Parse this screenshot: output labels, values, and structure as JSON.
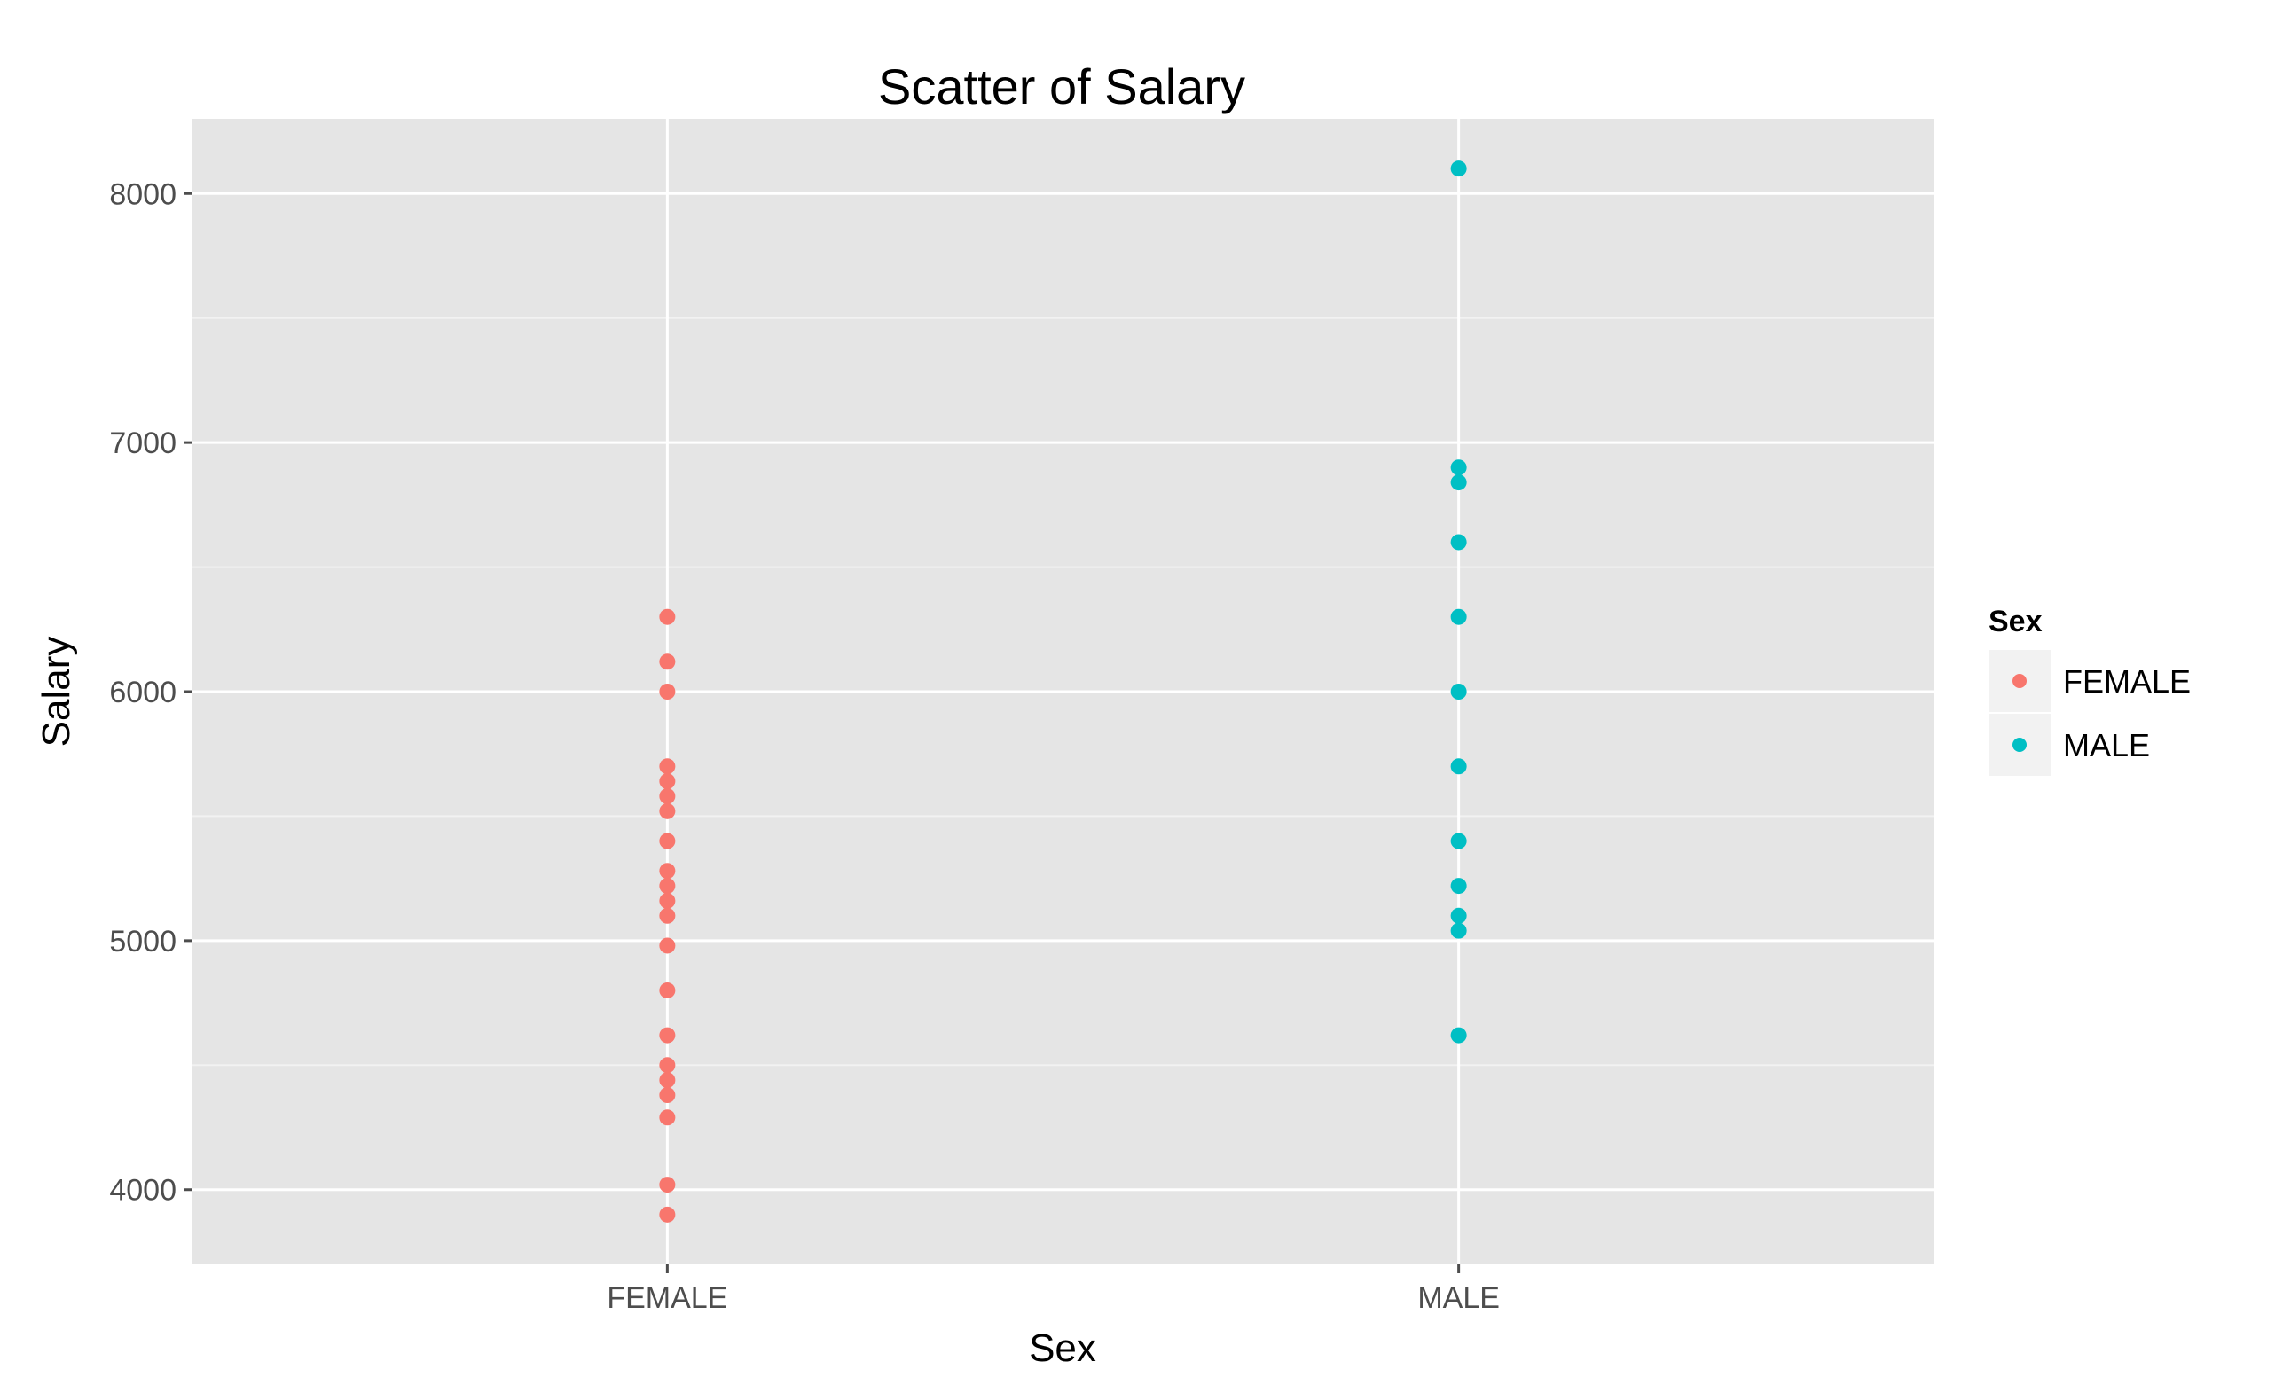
{
  "chart_data": {
    "type": "scatter",
    "title": "Scatter of Salary",
    "xlabel": "Sex",
    "ylabel": "Salary",
    "categories": [
      "FEMALE",
      "MALE"
    ],
    "yticks": [
      4000,
      5000,
      6000,
      7000,
      8000
    ],
    "ylim": [
      3700,
      8300
    ],
    "grid": true,
    "legend": {
      "title": "Sex",
      "placement": "right",
      "entries": [
        "FEMALE",
        "MALE"
      ]
    },
    "series": [
      {
        "name": "FEMALE",
        "color": "#f8766d",
        "x": "FEMALE",
        "values": [
          6300,
          6120,
          6000,
          5700,
          5640,
          5580,
          5520,
          5400,
          5280,
          5220,
          5160,
          5100,
          4980,
          4800,
          4620,
          4500,
          4440,
          4380,
          4290,
          4020,
          3900
        ]
      },
      {
        "name": "MALE",
        "color": "#00bfc4",
        "x": "MALE",
        "values": [
          8100,
          6900,
          6840,
          6600,
          6300,
          6000,
          5700,
          5400,
          5220,
          5100,
          5040,
          4620
        ]
      }
    ]
  }
}
